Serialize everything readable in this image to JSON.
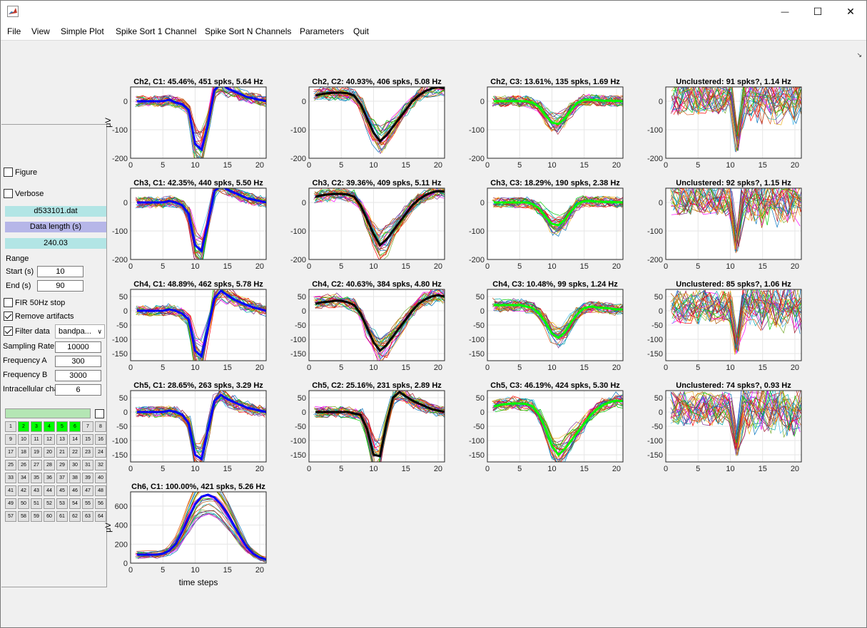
{
  "window": {
    "title": "",
    "minimize_glyph": "—",
    "maximize_glyph": "☐",
    "close_glyph": "✕"
  },
  "menu": [
    "File",
    "View",
    "Simple Plot",
    "Spike Sort 1 Channel",
    "Spike Sort N Channels",
    "Parameters",
    "Quit"
  ],
  "panel": {
    "figure_label": "Figure",
    "figure_checked": false,
    "verbose_label": "Verbose",
    "verbose_checked": false,
    "file_name": "d533101.dat",
    "data_length_label": "Data length (s)",
    "data_length_value": "240.03",
    "range_label": "Range",
    "start_label": "Start (s)",
    "start_value": "10",
    "end_label": "End (s)",
    "end_value": "90",
    "fir_label": "FIR 50Hz stop",
    "fir_checked": false,
    "remove_label": "Remove artifacts",
    "remove_checked": true,
    "filter_label": "Filter data",
    "filter_checked": true,
    "filter_mode": "bandpa...",
    "sampling_label": "Sampling Rate",
    "sampling_value": "10000",
    "freqA_label": "Frequency A",
    "freqA_value": "300",
    "freqB_label": "Frequency B",
    "freqB_value": "3000",
    "intra_label": "Intracellular chan",
    "intra_value": "6",
    "progress_fraction": 1.0,
    "channels": [
      "1",
      "2",
      "3",
      "4",
      "5",
      "6",
      "7",
      "8",
      "9",
      "10",
      "11",
      "12",
      "13",
      "14",
      "15",
      "16",
      "17",
      "18",
      "19",
      "20",
      "21",
      "22",
      "23",
      "24",
      "25",
      "26",
      "27",
      "28",
      "29",
      "30",
      "31",
      "32",
      "33",
      "34",
      "35",
      "36",
      "37",
      "38",
      "39",
      "40",
      "41",
      "42",
      "43",
      "44",
      "45",
      "46",
      "47",
      "48",
      "49",
      "50",
      "51",
      "52",
      "53",
      "54",
      "55",
      "56",
      "57",
      "58",
      "59",
      "60",
      "61",
      "62",
      "63",
      "64"
    ],
    "selected_channels": [
      "2",
      "3",
      "4",
      "5",
      "6"
    ]
  },
  "colors": {
    "blue": "#0000ff",
    "black": "#000000",
    "green": "#00ff00",
    "red": "#ff0000",
    "active": "#00ff00",
    "cyan": "#b2e5e5",
    "lavender": "#b6b6e8"
  },
  "chart_data": {
    "type": "line",
    "xlabel": "time steps",
    "ylabel": "μV",
    "plots": [
      {
        "title": "Ch2, C1: 45.46%, 451 spks, 5.64 Hz",
        "ylim": [
          -200,
          50
        ],
        "yticks": [
          0,
          -100,
          -200
        ],
        "mean_color": "blue",
        "mean": [
          0,
          0,
          0,
          0,
          0,
          5,
          -5,
          -10,
          -30,
          -150,
          -170,
          -80,
          40,
          60,
          45,
          35,
          25,
          15,
          10,
          5,
          0
        ]
      },
      {
        "title": "Ch2, C2: 40.93%, 406 spks, 5.08 Hz",
        "ylim": [
          -200,
          50
        ],
        "yticks": [
          0,
          -100,
          -200
        ],
        "mean_color": "black",
        "mean": [
          20,
          25,
          28,
          30,
          30,
          28,
          20,
          -10,
          -60,
          -110,
          -140,
          -120,
          -90,
          -60,
          -30,
          0,
          20,
          35,
          45,
          50,
          45
        ]
      },
      {
        "title": "Ch2, C3: 13.61%, 135 spks, 1.69 Hz",
        "ylim": [
          -200,
          50
        ],
        "yticks": [
          0,
          -100,
          -200
        ],
        "mean_color": "green",
        "mean": [
          0,
          0,
          0,
          0,
          0,
          0,
          -5,
          -20,
          -50,
          -75,
          -80,
          -60,
          -30,
          -5,
          5,
          5,
          3,
          2,
          2,
          1,
          0
        ]
      },
      {
        "title": "Unclustered: 91 spks?, 1.14 Hz",
        "ylim": [
          -200,
          50
        ],
        "yticks": [
          0,
          -100,
          -200
        ],
        "mean_color": "none",
        "mean": []
      },
      {
        "title": "Ch3, C1: 42.35%, 440 spks, 5.50 Hz",
        "ylim": [
          -200,
          50
        ],
        "yticks": [
          0,
          -100,
          -200
        ],
        "mean_color": "blue",
        "mean": [
          0,
          0,
          0,
          0,
          0,
          5,
          0,
          -10,
          -40,
          -150,
          -170,
          -70,
          40,
          60,
          45,
          35,
          25,
          15,
          10,
          5,
          0
        ]
      },
      {
        "title": "Ch3, C2: 39.36%, 409 spks, 5.11 Hz",
        "ylim": [
          -200,
          50
        ],
        "yticks": [
          0,
          -100,
          -200
        ],
        "mean_color": "black",
        "mean": [
          20,
          25,
          28,
          30,
          30,
          28,
          20,
          -10,
          -60,
          -110,
          -150,
          -130,
          -100,
          -70,
          -40,
          -10,
          10,
          25,
          35,
          40,
          38
        ]
      },
      {
        "title": "Ch3, C3: 18.29%, 190 spks, 2.38 Hz",
        "ylim": [
          -200,
          50
        ],
        "yticks": [
          0,
          -100,
          -200
        ],
        "mean_color": "green",
        "mean": [
          0,
          0,
          0,
          0,
          0,
          0,
          -5,
          -20,
          -50,
          -75,
          -80,
          -60,
          -30,
          -5,
          5,
          5,
          3,
          2,
          2,
          1,
          0
        ]
      },
      {
        "title": "Unclustered: 92 spks?, 1.15 Hz",
        "ylim": [
          -200,
          50
        ],
        "yticks": [
          0,
          -100,
          -200
        ],
        "mean_color": "none",
        "mean": []
      },
      {
        "title": "Ch4, C1: 48.89%, 462 spks, 5.78 Hz",
        "ylim": [
          -175,
          75
        ],
        "yticks": [
          50,
          0,
          -50,
          -100,
          -150
        ],
        "mean_color": "blue",
        "mean": [
          0,
          0,
          0,
          0,
          0,
          5,
          0,
          -10,
          -30,
          -140,
          -160,
          -60,
          45,
          70,
          55,
          40,
          30,
          20,
          12,
          6,
          0
        ]
      },
      {
        "title": "Ch4, C2: 40.63%, 384 spks, 4.80 Hz",
        "ylim": [
          -175,
          75
        ],
        "yticks": [
          50,
          0,
          -50,
          -100,
          -150
        ],
        "mean_color": "black",
        "mean": [
          25,
          30,
          32,
          35,
          35,
          30,
          20,
          -10,
          -60,
          -110,
          -140,
          -120,
          -90,
          -60,
          -30,
          0,
          25,
          40,
          50,
          55,
          50
        ]
      },
      {
        "title": "Ch4, C3: 10.48%, 99 spks, 1.24 Hz",
        "ylim": [
          -175,
          75
        ],
        "yticks": [
          50,
          0,
          -50,
          -100,
          -150
        ],
        "mean_color": "green",
        "mean": [
          20,
          20,
          20,
          20,
          20,
          15,
          10,
          -10,
          -40,
          -80,
          -95,
          -75,
          -40,
          -10,
          10,
          15,
          12,
          10,
          8,
          5,
          5
        ]
      },
      {
        "title": "Unclustered: 85 spks?, 1.06 Hz",
        "ylim": [
          -175,
          75
        ],
        "yticks": [
          50,
          0,
          -50,
          -100,
          -150
        ],
        "mean_color": "none",
        "mean": []
      },
      {
        "title": "Ch5, C1: 28.65%, 263 spks, 3.29 Hz",
        "ylim": [
          -175,
          75
        ],
        "yticks": [
          50,
          0,
          -50,
          -100,
          -150
        ],
        "mean_color": "blue",
        "mean": [
          0,
          0,
          0,
          0,
          0,
          5,
          0,
          -10,
          -40,
          -150,
          -165,
          -60,
          40,
          60,
          45,
          35,
          25,
          15,
          10,
          5,
          0
        ]
      },
      {
        "title": "Ch5, C2: 25.16%, 231 spks, 2.89 Hz",
        "ylim": [
          -175,
          75
        ],
        "yticks": [
          50,
          0,
          -50,
          -100,
          -150
        ],
        "mean_color": "black",
        "mean": [
          0,
          0,
          0,
          0,
          0,
          0,
          -5,
          -10,
          -60,
          -150,
          -155,
          -40,
          50,
          70,
          55,
          40,
          30,
          20,
          10,
          5,
          0
        ]
      },
      {
        "title": "Ch5, C3: 46.19%, 424 spks, 5.30 Hz",
        "ylim": [
          -175,
          75
        ],
        "yticks": [
          50,
          0,
          -50,
          -100,
          -150
        ],
        "mean_color": "green",
        "mean": [
          20,
          25,
          28,
          30,
          30,
          28,
          20,
          -10,
          -60,
          -120,
          -150,
          -130,
          -100,
          -70,
          -40,
          -10,
          10,
          25,
          35,
          40,
          38
        ]
      },
      {
        "title": "Unclustered: 74 spks?, 0.93 Hz",
        "ylim": [
          -175,
          75
        ],
        "yticks": [
          50,
          0,
          -50,
          -100,
          -150
        ],
        "mean_color": "none",
        "mean": []
      },
      {
        "title": "Ch6, C1: 100.00%, 421 spks, 5.26 Hz",
        "ylim": [
          0,
          750
        ],
        "yticks": [
          600,
          400,
          200,
          0
        ],
        "mean_color": "blue",
        "mean": [
          90,
          90,
          90,
          90,
          100,
          130,
          200,
          330,
          480,
          620,
          700,
          720,
          690,
          620,
          520,
          400,
          280,
          170,
          100,
          60,
          40
        ]
      }
    ],
    "xticks": [
      0,
      5,
      10,
      15,
      20
    ],
    "xlim": [
      0,
      21
    ]
  }
}
